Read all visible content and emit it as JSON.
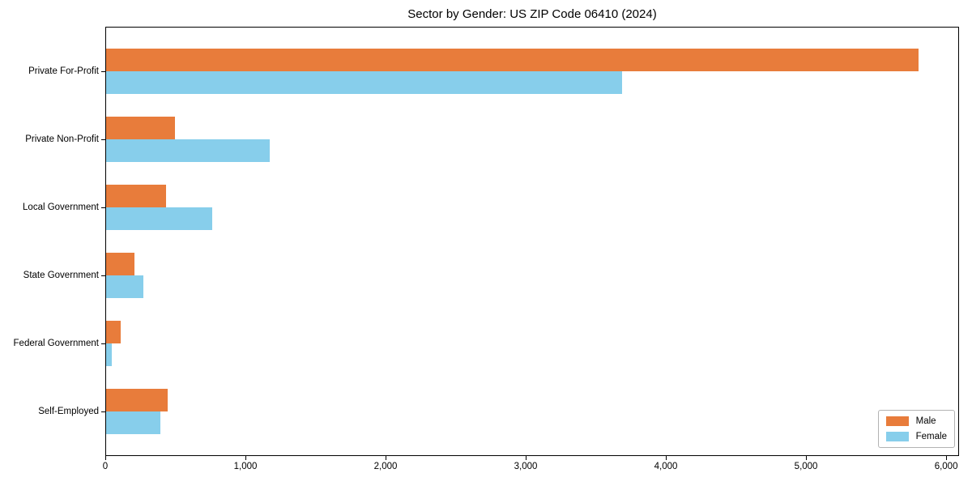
{
  "title": "Sector by Gender: US ZIP Code 06410 (2024)",
  "chart_data": {
    "type": "bar",
    "orientation": "horizontal",
    "title": "Sector by Gender: US ZIP Code 06410 (2024)",
    "categories": [
      "Private For-Profit",
      "Private Non-Profit",
      "Local Government",
      "State Government",
      "Federal Government",
      "Self-Employed"
    ],
    "series": [
      {
        "name": "Male",
        "color": "#e87c3b",
        "values": [
          5800,
          490,
          430,
          200,
          105,
          440
        ]
      },
      {
        "name": "Female",
        "color": "#87ceeb",
        "values": [
          3680,
          1170,
          760,
          265,
          38,
          390
        ]
      }
    ],
    "xlabel": "",
    "ylabel": "",
    "xlim": [
      0,
      6092
    ],
    "xticks": [
      0,
      1000,
      2000,
      3000,
      4000,
      5000,
      6000
    ],
    "xtick_labels": [
      "0",
      "1,000",
      "2,000",
      "3,000",
      "4,000",
      "5,000",
      "6,000"
    ],
    "grid": false,
    "background": "#ffffff",
    "border_color": "#000000",
    "legend_position": "lower right"
  }
}
